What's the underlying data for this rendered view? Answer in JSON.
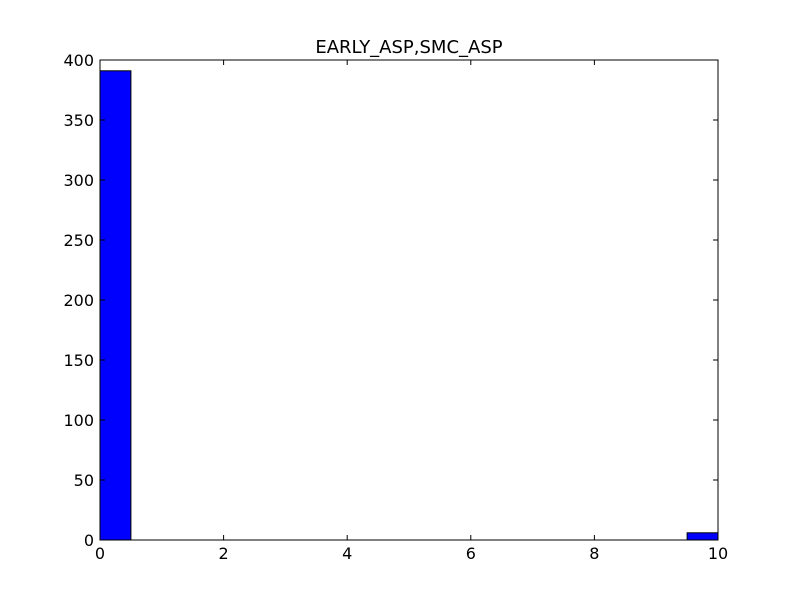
{
  "chart_data": {
    "type": "bar",
    "title": "EARLY_ASP,SMC_ASP",
    "xlabel": "",
    "ylabel": "",
    "xlim": [
      0,
      10
    ],
    "ylim": [
      0,
      400
    ],
    "xticks": [
      0,
      2,
      4,
      6,
      8,
      10
    ],
    "yticks": [
      0,
      50,
      100,
      150,
      200,
      250,
      300,
      350,
      400
    ],
    "bar_color": "#0000ff",
    "bins": [
      {
        "x0": 0.0,
        "x1": 0.5,
        "value": 391
      },
      {
        "x0": 0.5,
        "x1": 1.0,
        "value": 0
      },
      {
        "x0": 1.0,
        "x1": 1.5,
        "value": 0
      },
      {
        "x0": 1.5,
        "x1": 2.0,
        "value": 0
      },
      {
        "x0": 2.0,
        "x1": 2.5,
        "value": 0
      },
      {
        "x0": 2.5,
        "x1": 3.0,
        "value": 0
      },
      {
        "x0": 3.0,
        "x1": 3.5,
        "value": 0
      },
      {
        "x0": 3.5,
        "x1": 4.0,
        "value": 0
      },
      {
        "x0": 4.0,
        "x1": 4.5,
        "value": 0
      },
      {
        "x0": 4.5,
        "x1": 5.0,
        "value": 0
      },
      {
        "x0": 5.0,
        "x1": 5.5,
        "value": 0
      },
      {
        "x0": 5.5,
        "x1": 6.0,
        "value": 0
      },
      {
        "x0": 6.0,
        "x1": 6.5,
        "value": 0
      },
      {
        "x0": 6.5,
        "x1": 7.0,
        "value": 0
      },
      {
        "x0": 7.0,
        "x1": 7.5,
        "value": 0
      },
      {
        "x0": 7.5,
        "x1": 8.0,
        "value": 0
      },
      {
        "x0": 8.0,
        "x1": 8.5,
        "value": 0
      },
      {
        "x0": 8.5,
        "x1": 9.0,
        "value": 0
      },
      {
        "x0": 9.0,
        "x1": 9.5,
        "value": 0
      },
      {
        "x0": 9.5,
        "x1": 10.0,
        "value": 6
      }
    ],
    "grid": false,
    "legend": "none"
  }
}
